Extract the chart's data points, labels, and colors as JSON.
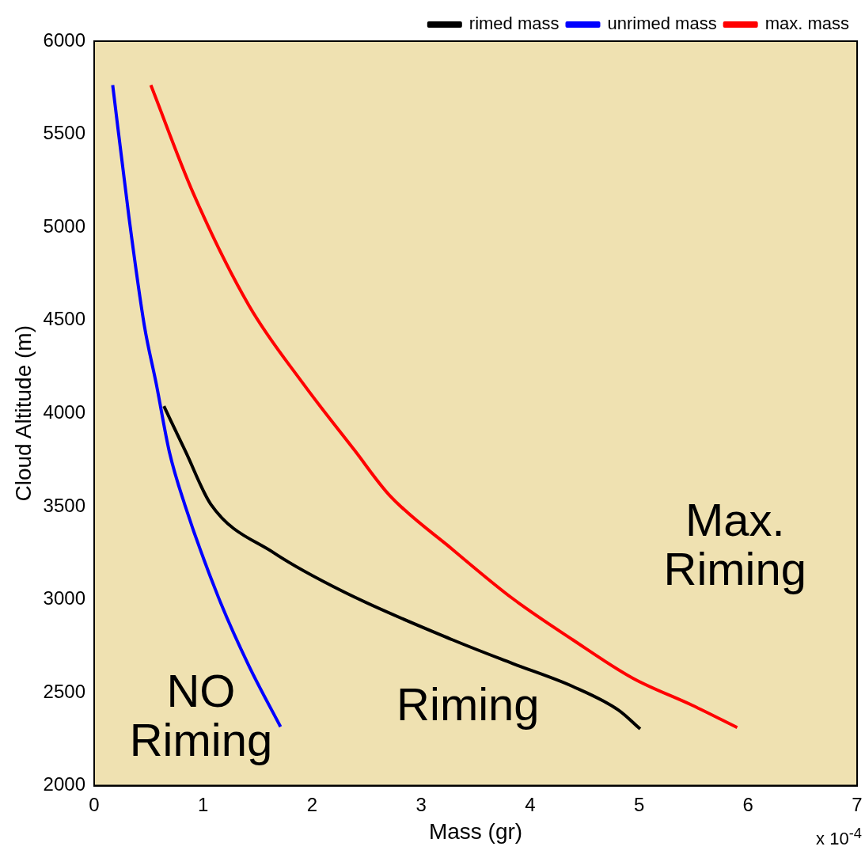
{
  "chart_data": {
    "type": "line",
    "xlabel": "Mass (gr)",
    "ylabel": "Cloud Altitude (m)",
    "xlim": [
      0,
      7
    ],
    "xticks": [
      0,
      1,
      2,
      3,
      4,
      5,
      6,
      7
    ],
    "ylim": [
      2000,
      6000
    ],
    "yticks": [
      2000,
      2500,
      3000,
      3500,
      4000,
      4500,
      5000,
      5500,
      6000
    ],
    "grid": false,
    "legend": "top right",
    "marker": "none",
    "line_style": "solid",
    "series": [
      {
        "name": "rimed mass",
        "color": "#000000",
        "x": [
          0.64,
          0.84,
          1.07,
          1.65,
          2.29,
          3.29,
          3.84,
          4.39,
          4.81,
          5.01
        ],
        "values": [
          4039,
          3793,
          3512,
          3250,
          3041,
          2783,
          2656,
          2533,
          2406,
          2304
        ]
      },
      {
        "name": "unrimed mass",
        "color": "#0000ff",
        "x": [
          0.17,
          0.32,
          0.46,
          0.57,
          0.69,
          0.83,
          1.14,
          1.42,
          1.71
        ],
        "values": [
          5764,
          5051,
          4473,
          4158,
          3793,
          3512,
          3012,
          2643,
          2316
        ]
      },
      {
        "name": "max. mass",
        "color": "#ff0000",
        "x": [
          0.52,
          0.91,
          1.42,
          1.92,
          2.39,
          2.71,
          3.29,
          3.84,
          4.39,
          4.94,
          5.49,
          5.9
        ],
        "values": [
          5764,
          5182,
          4580,
          4158,
          3801,
          3560,
          3268,
          3005,
          2784,
          2578,
          2431,
          2312
        ]
      }
    ],
    "annotations": [
      "NO\nRiming",
      "Riming",
      "Max.\nRiming",
      "x 10$^{-4}$"
    ]
  }
}
